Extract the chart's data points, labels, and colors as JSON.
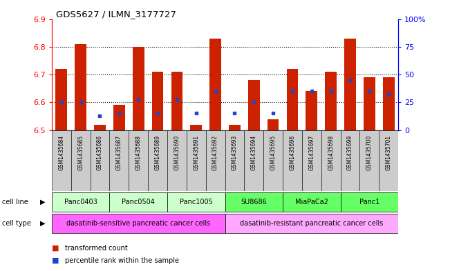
{
  "title": "GDS5627 / ILMN_3177727",
  "samples": [
    "GSM1435684",
    "GSM1435685",
    "GSM1435686",
    "GSM1435687",
    "GSM1435688",
    "GSM1435689",
    "GSM1435690",
    "GSM1435691",
    "GSM1435692",
    "GSM1435693",
    "GSM1435694",
    "GSM1435695",
    "GSM1435696",
    "GSM1435697",
    "GSM1435698",
    "GSM1435699",
    "GSM1435700",
    "GSM1435701"
  ],
  "transformed_count": [
    6.72,
    6.81,
    6.52,
    6.59,
    6.8,
    6.71,
    6.71,
    6.52,
    6.83,
    6.52,
    6.68,
    6.54,
    6.72,
    6.64,
    6.71,
    6.83,
    6.69,
    6.69
  ],
  "percentile_rank": [
    25,
    25,
    13,
    15,
    28,
    15,
    28,
    15,
    35,
    15,
    25,
    15,
    35,
    35,
    35,
    45,
    35,
    32
  ],
  "cell_lines": [
    {
      "name": "Panc0403",
      "start": 0,
      "end": 3
    },
    {
      "name": "Panc0504",
      "start": 3,
      "end": 6
    },
    {
      "name": "Panc1005",
      "start": 6,
      "end": 9
    },
    {
      "name": "SU8686",
      "start": 9,
      "end": 12
    },
    {
      "name": "MiaPaCa2",
      "start": 12,
      "end": 15
    },
    {
      "name": "Panc1",
      "start": 15,
      "end": 18
    }
  ],
  "cell_line_sensitive_color": "#ccffcc",
  "cell_line_resistant_color": "#66ff66",
  "cell_types": [
    {
      "name": "dasatinib-sensitive pancreatic cancer cells",
      "start": 0,
      "end": 9,
      "color": "#ff66ff"
    },
    {
      "name": "dasatinib-resistant pancreatic cancer cells",
      "start": 9,
      "end": 18,
      "color": "#ffaaff"
    }
  ],
  "ylim_left": [
    6.5,
    6.9
  ],
  "ylim_right": [
    0,
    100
  ],
  "yticks_left": [
    6.5,
    6.6,
    6.7,
    6.8,
    6.9
  ],
  "yticks_right": [
    0,
    25,
    50,
    75,
    100
  ],
  "ytick_labels_right": [
    "0",
    "25",
    "50",
    "75",
    "100%"
  ],
  "bar_color_red": "#cc2200",
  "bar_color_blue": "#2244cc",
  "grid_dotted_at": [
    6.6,
    6.7,
    6.8
  ],
  "tick_bg_color": "#cccccc"
}
